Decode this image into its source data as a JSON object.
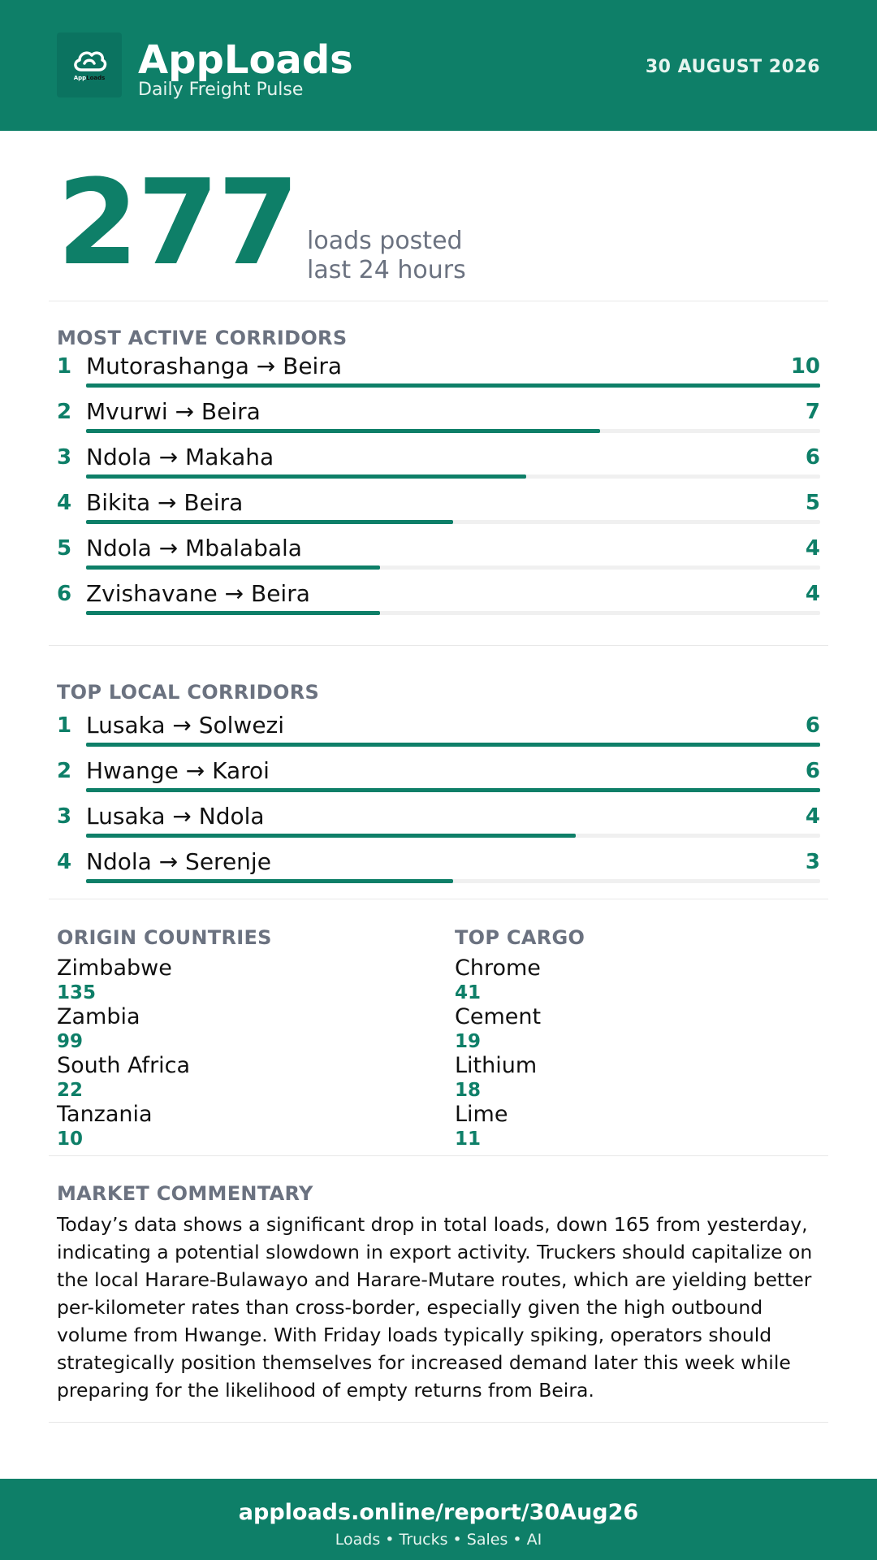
{
  "header": {
    "brand": "AppLoads",
    "tagline": "Daily Freight Pulse",
    "date": "30 AUGUST 2026",
    "logo_text_a": "App",
    "logo_text_b": "Loads"
  },
  "summary": {
    "total": "277",
    "label_line1": "loads posted",
    "label_line2": "last 24 hours"
  },
  "most_active": {
    "title": "MOST ACTIVE CORRIDORS",
    "max": 10,
    "items": [
      {
        "rank": "1",
        "route": "Mutorashanga → Beira",
        "count": 10
      },
      {
        "rank": "2",
        "route": "Mvurwi → Beira",
        "count": 7
      },
      {
        "rank": "3",
        "route": "Ndola → Makaha",
        "count": 6
      },
      {
        "rank": "4",
        "route": "Bikita → Beira",
        "count": 5
      },
      {
        "rank": "5",
        "route": "Ndola → Mbalabala",
        "count": 4
      },
      {
        "rank": "6",
        "route": "Zvishavane → Beira",
        "count": 4
      }
    ]
  },
  "top_local": {
    "title": "TOP LOCAL CORRIDORS",
    "max": 6,
    "items": [
      {
        "rank": "1",
        "route": "Lusaka → Solwezi",
        "count": 6
      },
      {
        "rank": "2",
        "route": "Hwange → Karoi",
        "count": 6
      },
      {
        "rank": "3",
        "route": "Lusaka → Ndola",
        "count": 4
      },
      {
        "rank": "4",
        "route": "Ndola → Serenje",
        "count": 3
      }
    ]
  },
  "origin_countries": {
    "title": "ORIGIN COUNTRIES",
    "items": [
      {
        "name": "Zimbabwe",
        "value": "135"
      },
      {
        "name": "Zambia",
        "value": "99"
      },
      {
        "name": "South Africa",
        "value": "22"
      },
      {
        "name": "Tanzania",
        "value": "10"
      }
    ]
  },
  "top_cargo": {
    "title": "TOP CARGO",
    "items": [
      {
        "name": "Chrome",
        "value": "41"
      },
      {
        "name": "Cement",
        "value": "19"
      },
      {
        "name": "Lithium",
        "value": "18"
      },
      {
        "name": "Lime",
        "value": "11"
      }
    ]
  },
  "commentary": {
    "title": "MARKET COMMENTARY",
    "text": "Today’s data shows a significant drop in total loads, down 165 from yesterday, indicating a potential slowdown in export activity. Truckers should capitalize on the local Harare-Bulawayo and Harare-Mutare routes, which are yielding better per-kilometer rates than cross-border, especially given the high outbound volume from Hwange. With Friday loads typically spiking, operators should strategically position themselves for increased demand later this week while preparing for the likelihood of empty returns from Beira."
  },
  "footer": {
    "url": "apploads.online/report/30Aug26",
    "tagline": "Loads • Trucks • Sales • AI"
  },
  "colors": {
    "brand_green": "#0e7f68",
    "muted_gray": "#6b7280"
  },
  "icons": {
    "logo": "cloud-logo-icon"
  }
}
